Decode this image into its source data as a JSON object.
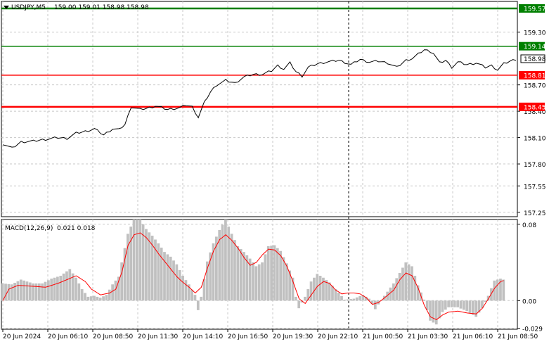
{
  "header": {
    "symbol": "USDJPY,M5",
    "ohlc": "159.00 159.01 158.98 158.98"
  },
  "macd_header": {
    "label": "MACD(12,26,9)",
    "values": "0.021 0.018"
  },
  "colors": {
    "price_line": "#000000",
    "resistance": "#008000",
    "support": "#ff0000",
    "current_price_box": "#ffffff",
    "histogram": "#c0c0c0",
    "signal": "#ff0000",
    "grid": "#c8c8c8",
    "axis": "#000000"
  },
  "chart_data": [
    {
      "type": "line",
      "name": "price",
      "ylim": [
        157.2,
        159.65
      ],
      "y_ticks": [
        "159.30",
        "158.70",
        "158.40",
        "158.10",
        "157.80",
        "157.55",
        "157.25"
      ],
      "x_ticks": [
        "20 Jun 2024",
        "20 Jun 06:10",
        "20 Jun 08:50",
        "20 Jun 11:30",
        "20 Jun 14:10",
        "20 Jun 16:50",
        "20 Jun 19:30",
        "20 Jun 22:10",
        "21 Jun 00:50",
        "21 Jun 03:30",
        "21 Jun 06:10",
        "21 Jun 08:50"
      ],
      "levels": [
        {
          "label": "159.57",
          "value": 159.57,
          "role": "resistance"
        },
        {
          "label": "159.14",
          "value": 159.14,
          "role": "resistance"
        },
        {
          "label": "158.81",
          "value": 158.81,
          "role": "support"
        },
        {
          "label": "158.45",
          "value": 158.45,
          "role": "support"
        }
      ],
      "current_price": "158.98",
      "anchors": [
        [
          0,
          158.03
        ],
        [
          3,
          157.98
        ],
        [
          6,
          158.05
        ],
        [
          10,
          158.06
        ],
        [
          14,
          158.08
        ],
        [
          18,
          158.1
        ],
        [
          21,
          158.09
        ],
        [
          24,
          158.15
        ],
        [
          27,
          158.17
        ],
        [
          30,
          158.2
        ],
        [
          33,
          158.13
        ],
        [
          36,
          158.2
        ],
        [
          38,
          158.19
        ],
        [
          40,
          158.25
        ],
        [
          42,
          158.45
        ],
        [
          45,
          158.42
        ],
        [
          48,
          158.44
        ],
        [
          50,
          158.46
        ],
        [
          54,
          158.42
        ],
        [
          58,
          158.44
        ],
        [
          60,
          158.47
        ],
        [
          62,
          158.45
        ],
        [
          64,
          158.33
        ],
        [
          66,
          158.5
        ],
        [
          68,
          158.62
        ],
        [
          70,
          158.7
        ],
        [
          73,
          158.75
        ],
        [
          76,
          158.72
        ],
        [
          79,
          158.79
        ],
        [
          82,
          158.82
        ],
        [
          85,
          158.82
        ],
        [
          88,
          158.86
        ],
        [
          90,
          158.92
        ],
        [
          92,
          158.88
        ],
        [
          94,
          158.95
        ],
        [
          96,
          158.85
        ],
        [
          98,
          158.8
        ],
        [
          100,
          158.9
        ],
        [
          103,
          158.94
        ],
        [
          106,
          158.96
        ],
        [
          110,
          158.98
        ],
        [
          114,
          158.93
        ],
        [
          117,
          158.99
        ],
        [
          120,
          158.96
        ],
        [
          123,
          158.97
        ],
        [
          126,
          158.95
        ],
        [
          129,
          158.9
        ],
        [
          132,
          158.98
        ],
        [
          134,
          159.0
        ],
        [
          136,
          159.05
        ],
        [
          138,
          159.1
        ],
        [
          140,
          159.08
        ],
        [
          141,
          159.06
        ],
        [
          143,
          158.95
        ],
        [
          145,
          158.98
        ],
        [
          147,
          158.9
        ],
        [
          149,
          158.96
        ],
        [
          152,
          158.93
        ],
        [
          155,
          158.95
        ],
        [
          158,
          158.9
        ],
        [
          160,
          158.92
        ],
        [
          162,
          158.87
        ],
        [
          164,
          158.94
        ],
        [
          166,
          158.97
        ],
        [
          168,
          158.99
        ]
      ]
    },
    {
      "type": "bar",
      "name": "MACD(12,26,9)",
      "ylim": [
        -0.03,
        0.085
      ],
      "y_ticks": [
        "0.08",
        "0.00",
        "-0.029"
      ],
      "histogram_anchors": [
        [
          0,
          0.018
        ],
        [
          3,
          0.017
        ],
        [
          6,
          0.022
        ],
        [
          10,
          0.018
        ],
        [
          13,
          0.018
        ],
        [
          16,
          0.023
        ],
        [
          19,
          0.026
        ],
        [
          22,
          0.033
        ],
        [
          24,
          0.024
        ],
        [
          26,
          0.012
        ],
        [
          28,
          0.004
        ],
        [
          30,
          0.005
        ],
        [
          32,
          0.003
        ],
        [
          34,
          0.006
        ],
        [
          36,
          0.017
        ],
        [
          38,
          0.025
        ],
        [
          41,
          0.07
        ],
        [
          43,
          0.085
        ],
        [
          45,
          0.085
        ],
        [
          47,
          0.075
        ],
        [
          49,
          0.068
        ],
        [
          51,
          0.06
        ],
        [
          53,
          0.051
        ],
        [
          55,
          0.046
        ],
        [
          57,
          0.038
        ],
        [
          59,
          0.026
        ],
        [
          61,
          0.017
        ],
        [
          63,
          0.006
        ],
        [
          64,
          -0.01
        ],
        [
          65,
          0.004
        ],
        [
          67,
          0.041
        ],
        [
          69,
          0.06
        ],
        [
          71,
          0.074
        ],
        [
          73,
          0.085
        ],
        [
          75,
          0.07
        ],
        [
          77,
          0.057
        ],
        [
          79,
          0.051
        ],
        [
          81,
          0.044
        ],
        [
          83,
          0.036
        ],
        [
          85,
          0.04
        ],
        [
          87,
          0.057
        ],
        [
          89,
          0.058
        ],
        [
          91,
          0.052
        ],
        [
          93,
          0.039
        ],
        [
          95,
          0.024
        ],
        [
          96,
          0.004
        ],
        [
          97,
          -0.008
        ],
        [
          99,
          0.004
        ],
        [
          101,
          0.02
        ],
        [
          103,
          0.028
        ],
        [
          105,
          0.024
        ],
        [
          107,
          0.019
        ],
        [
          109,
          0.012
        ],
        [
          112,
          0.001
        ],
        [
          115,
          0.002
        ],
        [
          118,
          0.006
        ],
        [
          120,
          0.002
        ],
        [
          122,
          -0.009
        ],
        [
          123,
          -0.004
        ],
        [
          125,
          0.005
        ],
        [
          128,
          0.018
        ],
        [
          130,
          0.029
        ],
        [
          132,
          0.04
        ],
        [
          134,
          0.036
        ],
        [
          136,
          0.016
        ],
        [
          138,
          0.001
        ],
        [
          140,
          -0.021
        ],
        [
          142,
          -0.025
        ],
        [
          144,
          -0.012
        ],
        [
          146,
          -0.007
        ],
        [
          149,
          -0.007
        ],
        [
          152,
          -0.011
        ],
        [
          155,
          -0.017
        ],
        [
          157,
          -0.008
        ],
        [
          159,
          0.005
        ],
        [
          161,
          0.021
        ],
        [
          163,
          0.023
        ],
        [
          164,
          0.022
        ]
      ],
      "signal_anchors": [
        [
          0,
          0.0
        ],
        [
          2,
          0.012
        ],
        [
          5,
          0.016
        ],
        [
          10,
          0.015
        ],
        [
          14,
          0.014
        ],
        [
          18,
          0.018
        ],
        [
          21,
          0.022
        ],
        [
          24,
          0.026
        ],
        [
          27,
          0.02
        ],
        [
          29,
          0.012
        ],
        [
          32,
          0.006
        ],
        [
          35,
          0.008
        ],
        [
          37,
          0.012
        ],
        [
          39,
          0.03
        ],
        [
          41,
          0.058
        ],
        [
          43,
          0.069
        ],
        [
          45,
          0.071
        ],
        [
          47,
          0.066
        ],
        [
          49,
          0.058
        ],
        [
          51,
          0.049
        ],
        [
          53,
          0.041
        ],
        [
          55,
          0.033
        ],
        [
          57,
          0.025
        ],
        [
          59,
          0.019
        ],
        [
          61,
          0.014
        ],
        [
          63,
          0.008
        ],
        [
          65,
          0.014
        ],
        [
          67,
          0.034
        ],
        [
          69,
          0.052
        ],
        [
          71,
          0.064
        ],
        [
          73,
          0.069
        ],
        [
          75,
          0.063
        ],
        [
          77,
          0.055
        ],
        [
          79,
          0.045
        ],
        [
          81,
          0.037
        ],
        [
          83,
          0.04
        ],
        [
          85,
          0.048
        ],
        [
          87,
          0.054
        ],
        [
          89,
          0.053
        ],
        [
          91,
          0.047
        ],
        [
          93,
          0.036
        ],
        [
          95,
          0.02
        ],
        [
          97,
          0.002
        ],
        [
          99,
          -0.003
        ],
        [
          101,
          0.006
        ],
        [
          103,
          0.015
        ],
        [
          105,
          0.02
        ],
        [
          107,
          0.018
        ],
        [
          109,
          0.011
        ],
        [
          111,
          0.007
        ],
        [
          113,
          0.008
        ],
        [
          115,
          0.008
        ],
        [
          117,
          0.007
        ],
        [
          119,
          0.003
        ],
        [
          121,
          -0.004
        ],
        [
          123,
          -0.002
        ],
        [
          125,
          0.003
        ],
        [
          128,
          0.011
        ],
        [
          130,
          0.022
        ],
        [
          132,
          0.029
        ],
        [
          134,
          0.026
        ],
        [
          136,
          0.013
        ],
        [
          138,
          -0.005
        ],
        [
          140,
          -0.017
        ],
        [
          142,
          -0.02
        ],
        [
          144,
          -0.015
        ],
        [
          146,
          -0.012
        ],
        [
          149,
          -0.011
        ],
        [
          152,
          -0.013
        ],
        [
          155,
          -0.014
        ],
        [
          157,
          -0.008
        ],
        [
          159,
          0.002
        ],
        [
          161,
          0.013
        ],
        [
          163,
          0.02
        ],
        [
          164,
          0.021
        ]
      ]
    }
  ]
}
